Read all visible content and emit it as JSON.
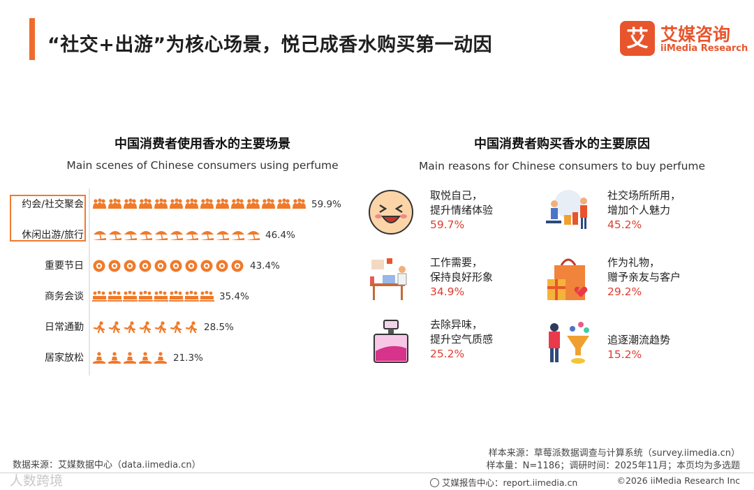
{
  "header": {
    "title": "“社交+出游”为核心场景，悦己成香水购买第一动因",
    "logo_cn": "艾媒咨询",
    "logo_en": "iiMedia Research",
    "logo_mark": "艾"
  },
  "chart_data": [
    {
      "type": "bar",
      "title": "中国消费者使用香水的主要场景",
      "subtitle": "Main scenes of Chinese consumers using perfume",
      "categories": [
        "约会/社交聚会",
        "休闲出游/旅行",
        "重要节日",
        "商务会谈",
        "日常通勤",
        "居家放松"
      ],
      "values": [
        59.9,
        46.4,
        43.4,
        35.4,
        28.5,
        21.3
      ],
      "value_labels": [
        "59.9%",
        "46.4%",
        "43.4%",
        "35.4%",
        "28.5%",
        "21.3%"
      ],
      "icons": [
        "group-of-people-icon",
        "beach-umbrella-icon",
        "gift-badge-icon",
        "business-meeting-icon",
        "commuting-runner-icon",
        "meditation-icon"
      ],
      "highlighted_categories": [
        "约会/社交聚会",
        "休闲出游/旅行"
      ],
      "unit": "%",
      "orientation": "horizontal",
      "accent_color": "#f07a2a"
    },
    {
      "type": "table",
      "title": "中国消费者购买香水的主要原因",
      "subtitle": "Main reasons for Chinese consumers to buy perfume",
      "items": [
        {
          "line1": "取悦自己，",
          "line2": "提升情绪体验",
          "value": 59.7,
          "label": "59.7%",
          "icon": "happy-face-icon"
        },
        {
          "line1": "社交场所所用，",
          "line2": "增加个人魅力",
          "value": 45.2,
          "label": "45.2%",
          "icon": "social-shopping-icon"
        },
        {
          "line1": "工作需要，",
          "line2": "保持良好形象",
          "value": 34.9,
          "label": "34.9%",
          "icon": "office-worker-icon"
        },
        {
          "line1": "作为礼物，",
          "line2": "赠予亲友与客户",
          "value": 29.2,
          "label": "29.2%",
          "icon": "gift-bag-icon"
        },
        {
          "line1": "去除异味，",
          "line2": "提升空气质感",
          "value": 25.2,
          "label": "25.2%",
          "icon": "perfume-bottle-icon"
        },
        {
          "line1": "追逐潮流趋势",
          "line2": "",
          "value": 15.2,
          "label": "15.2%",
          "icon": "trend-funnel-icon"
        }
      ]
    }
  ],
  "footer": {
    "data_source": "数据来源：艾媒数据中心（data.iimedia.cn）",
    "sample_source": "样本来源：草莓派数据调查与计算系统（survey.iimedia.cn）",
    "sample_size": "样本量：N=1186；调研时间：2025年11月；本页均为多选题",
    "report_center": "艾媒报告中心：report.iimedia.cn",
    "copyright": "©2026  iiMedia Research  Inc",
    "watermark": "人数跨境"
  },
  "colors": {
    "accent": "#ef6a2c",
    "icon_orange": "#f07a2a",
    "percent_red": "#e03c2f",
    "brand": "#e8552c"
  }
}
